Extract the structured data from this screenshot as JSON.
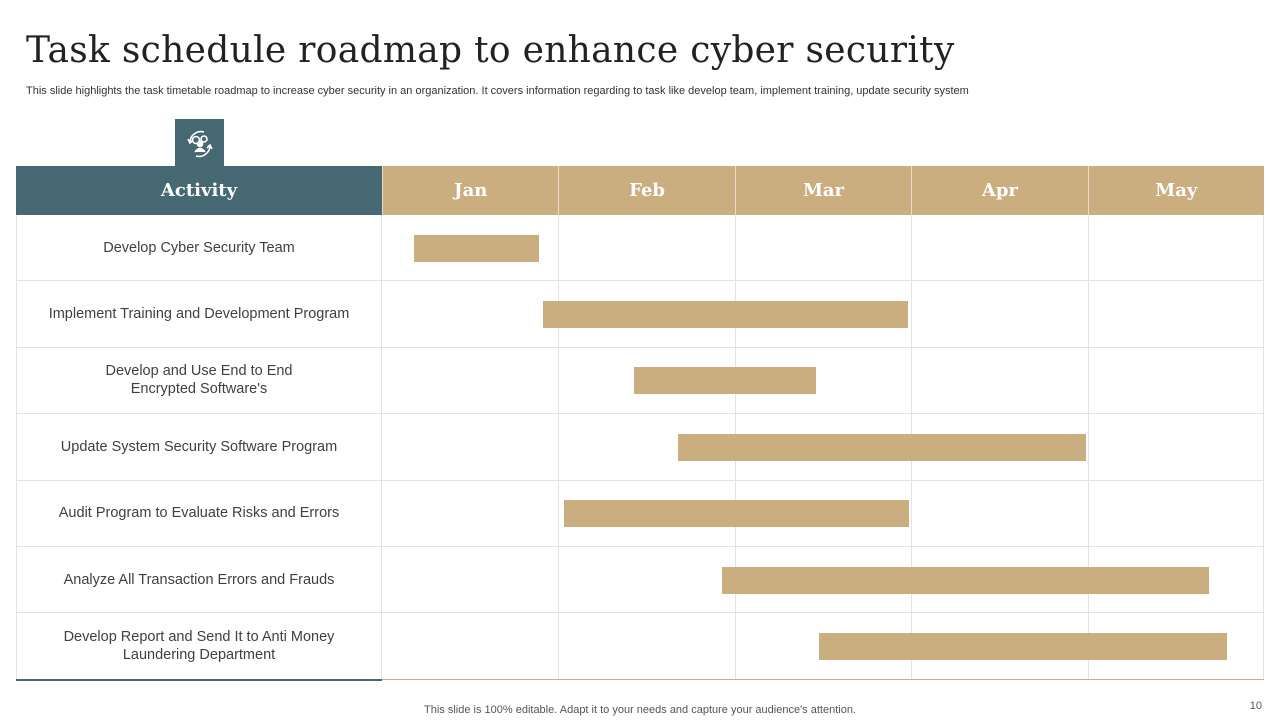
{
  "title": "Task schedule roadmap to enhance cyber security",
  "subtitle": "This slide highlights the task timetable roadmap to increase cyber security in an organization. It covers information regarding to task like develop team, implement training, update security system",
  "header": {
    "activity": "Activity",
    "months": [
      "Jan",
      "Feb",
      "Mar",
      "Apr",
      "May"
    ]
  },
  "colors": {
    "teal": "#466872",
    "gold": "#cbae80"
  },
  "tasks": [
    {
      "label": "Develop Cyber Security Team",
      "start": 0.18,
      "end": 0.89
    },
    {
      "label": "Implement Training and Development Program",
      "start": 0.91,
      "end": 2.98
    },
    {
      "label": "Develop and Use End to End\nEncrypted Software's",
      "start": 1.43,
      "end": 2.46
    },
    {
      "label": "Update System Security Software Program",
      "start": 1.68,
      "end": 3.99
    },
    {
      "label": "Audit Program to Evaluate Risks and Errors",
      "start": 1.03,
      "end": 2.99
    },
    {
      "label": "Analyze All Transaction Errors and Frauds",
      "start": 1.93,
      "end": 4.69
    },
    {
      "label": "Develop Report and Send It to Anti Money\nLaundering Department",
      "start": 2.48,
      "end": 4.79
    }
  ],
  "footer": "This slide is 100% editable. Adapt it to your needs and capture your audience's attention.",
  "page_number": "10"
}
